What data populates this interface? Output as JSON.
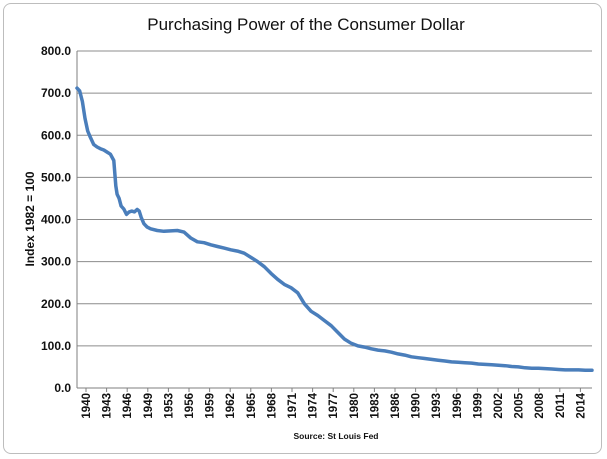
{
  "chart_data": {
    "type": "line",
    "title": "Purchasing Power of the Consumer Dollar",
    "ylabel": "Index 1982 =  100",
    "xlabel": "",
    "source": "Source: St Louis Fed",
    "ylim": [
      0,
      800
    ],
    "xlim": [
      1940,
      2017
    ],
    "grid": true,
    "legend": "none",
    "y_ticks": [
      "0.0",
      "100.0",
      "200.0",
      "300.0",
      "400.0",
      "500.0",
      "600.0",
      "700.0",
      "800.0"
    ],
    "x_ticks": [
      "1940",
      "1943",
      "1946",
      "1949",
      "1953",
      "1956",
      "1959",
      "1962",
      "1965",
      "1968",
      "1971",
      "1974",
      "1977",
      "1980",
      "1983",
      "1986",
      "1990",
      "1993",
      "1996",
      "1999",
      "2002",
      "2005",
      "2008",
      "2011",
      "2014"
    ],
    "line_color": "#4a7ebb",
    "series": [
      {
        "x": [
          1940,
          1940.4,
          1940.8,
          1941.2,
          1941.6,
          1942,
          1942.5,
          1943,
          1943.5,
          1944,
          1944.5,
          1945,
          1945.5,
          1945.8,
          1946,
          1946.3,
          1946.6,
          1947,
          1947.4,
          1947.8,
          1948.2,
          1948.6,
          1949,
          1949.3,
          1949.6,
          1950,
          1950.5,
          1951,
          1952,
          1953,
          1954,
          1955,
          1956,
          1957,
          1958,
          1959,
          1960,
          1961,
          1962,
          1963,
          1964,
          1965,
          1966,
          1967,
          1968,
          1969,
          1970,
          1971,
          1972,
          1973,
          1974,
          1975,
          1976,
          1977,
          1978,
          1979,
          1980,
          1981,
          1982,
          1983,
          1984,
          1985,
          1986,
          1987,
          1988,
          1989,
          1990,
          1991,
          1992,
          1993,
          1994,
          1995,
          1996,
          1997,
          1998,
          1999,
          2000,
          2001,
          2002,
          2003,
          2004,
          2005,
          2006,
          2007,
          2008,
          2009,
          2010,
          2011,
          2012,
          2013,
          2014,
          2015,
          2016,
          2017
        ],
        "y": [
          712,
          705,
          680,
          640,
          610,
          595,
          578,
          572,
          568,
          565,
          560,
          555,
          540,
          480,
          460,
          450,
          432,
          425,
          412,
          418,
          420,
          418,
          424,
          420,
          405,
          390,
          382,
          378,
          374,
          372,
          373,
          374,
          370,
          356,
          347,
          345,
          340,
          336,
          332,
          328,
          325,
          320,
          310,
          300,
          288,
          272,
          258,
          246,
          238,
          226,
          200,
          182,
          172,
          160,
          148,
          132,
          116,
          106,
          100,
          97,
          93,
          90,
          88,
          85,
          81,
          78,
          74,
          72,
          70,
          68,
          66,
          64,
          62,
          61,
          60,
          59,
          57,
          56,
          55,
          54,
          53,
          51,
          50,
          48,
          47,
          47,
          46,
          45,
          44,
          43,
          43,
          43,
          42,
          42
        ]
      }
    ]
  }
}
